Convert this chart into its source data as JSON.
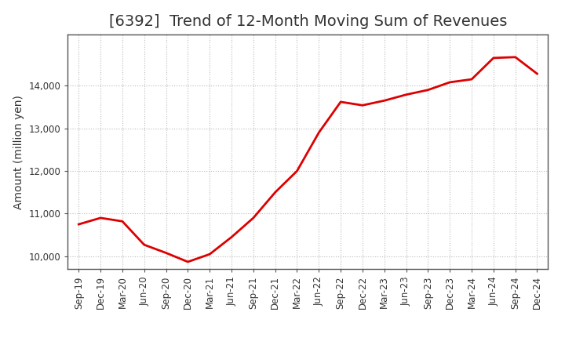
{
  "title": "[6392]  Trend of 12-Month Moving Sum of Revenues",
  "ylabel": "Amount (million yen)",
  "line_color": "#DD0000",
  "line_width": 2.0,
  "background_color": "#FFFFFF",
  "plot_bg_color": "#FFFFFF",
  "grid_color": "#BBBBBB",
  "grid_style": ":",
  "x_labels": [
    "Sep-19",
    "Dec-19",
    "Mar-20",
    "Jun-20",
    "Sep-20",
    "Dec-20",
    "Mar-21",
    "Jun-21",
    "Sep-21",
    "Dec-21",
    "Mar-22",
    "Jun-22",
    "Sep-22",
    "Dec-22",
    "Mar-23",
    "Jun-23",
    "Sep-23",
    "Dec-23",
    "Mar-24",
    "Jun-24",
    "Sep-24",
    "Dec-24"
  ],
  "values": [
    10750,
    10900,
    10820,
    10270,
    10080,
    9870,
    10050,
    10450,
    10900,
    11500,
    12000,
    12900,
    13620,
    13540,
    13650,
    13790,
    13900,
    14080,
    14150,
    14650,
    14670,
    14280
  ],
  "ylim": [
    9700,
    15200
  ],
  "yticks": [
    10000,
    11000,
    12000,
    13000,
    14000
  ],
  "title_fontsize": 14,
  "title_color": "#333333",
  "ylabel_fontsize": 10,
  "tick_fontsize": 8.5
}
